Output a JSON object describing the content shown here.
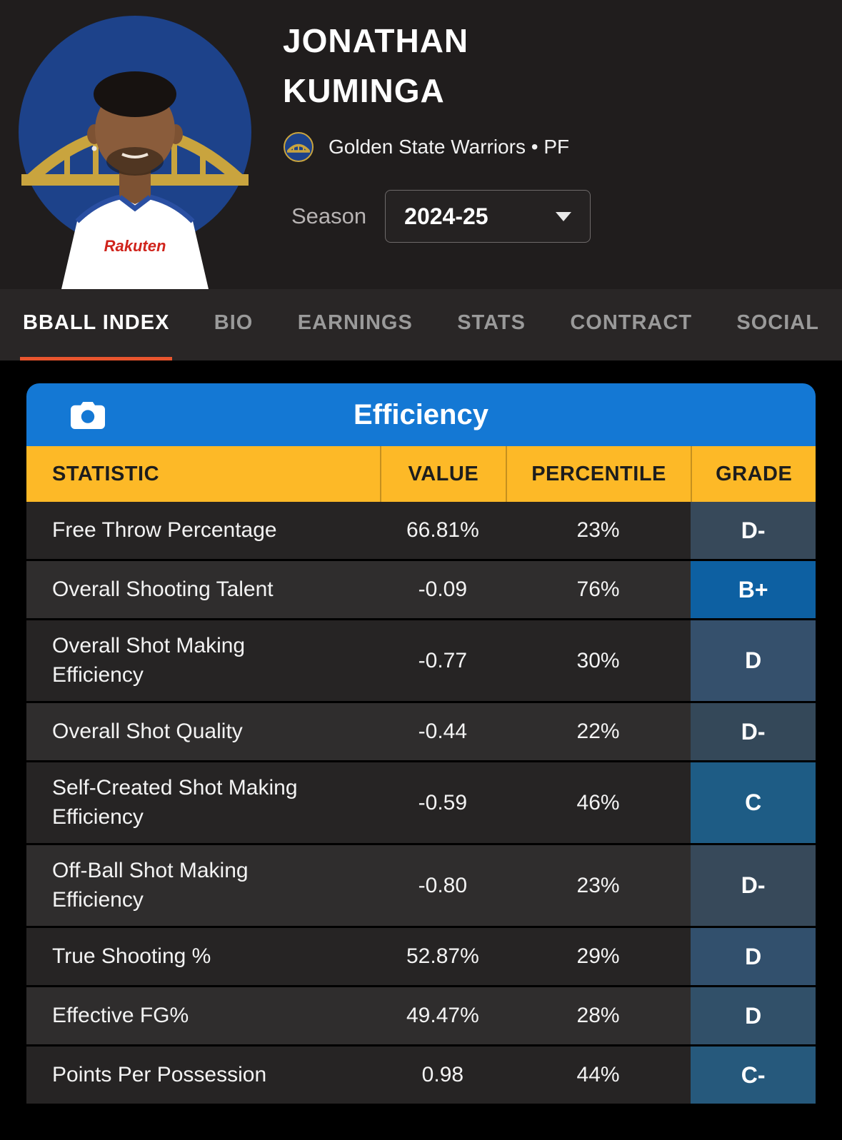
{
  "player": {
    "first_name": "JONATHAN",
    "last_name": "KUMINGA",
    "team": "Golden State Warriors • PF",
    "season_label": "Season",
    "season_value": "2024-25"
  },
  "tabs": [
    {
      "label": "BBALL INDEX",
      "active": true
    },
    {
      "label": "BIO",
      "active": false
    },
    {
      "label": "EARNINGS",
      "active": false
    },
    {
      "label": "STATS",
      "active": false
    },
    {
      "label": "CONTRACT",
      "active": false
    },
    {
      "label": "SOCIAL",
      "active": false
    }
  ],
  "card": {
    "title": "Efficiency",
    "columns": [
      "STATISTIC",
      "VALUE",
      "PERCENTILE",
      "GRADE"
    ],
    "rows": [
      {
        "stat": "Free Throw Percentage",
        "value": "66.81%",
        "percentile": "23%",
        "grade": "D-",
        "grade_color": "#37495a"
      },
      {
        "stat": "Overall Shooting Talent",
        "value": "-0.09",
        "percentile": "76%",
        "grade": "B+",
        "grade_color": "#0d60a2"
      },
      {
        "stat": "Overall Shot Making Efficiency",
        "value": "-0.77",
        "percentile": "30%",
        "grade": "D",
        "grade_color": "#35506c"
      },
      {
        "stat": "Overall Shot Quality",
        "value": "-0.44",
        "percentile": "22%",
        "grade": "D-",
        "grade_color": "#344859"
      },
      {
        "stat": "Self-Created Shot Making Efficiency",
        "value": "-0.59",
        "percentile": "46%",
        "grade": "C",
        "grade_color": "#1e5c85"
      },
      {
        "stat": "Off-Ball Shot Making Efficiency",
        "value": "-0.80",
        "percentile": "23%",
        "grade": "D-",
        "grade_color": "#37495a"
      },
      {
        "stat": "True Shooting %",
        "value": "52.87%",
        "percentile": "29%",
        "grade": "D",
        "grade_color": "#32506d"
      },
      {
        "stat": "Effective FG%",
        "value": "49.47%",
        "percentile": "28%",
        "grade": "D",
        "grade_color": "#315069"
      },
      {
        "stat": "Points Per Possession",
        "value": "0.98",
        "percentile": "44%",
        "grade": "C-",
        "grade_color": "#26597c"
      }
    ]
  },
  "colors": {
    "accent_orange": "#e8552e",
    "header_blue": "#1478d4",
    "header_gold": "#fdb927",
    "hero_bg": "#201d1d",
    "tabbar_bg": "#292626",
    "row_odd": "#262424",
    "row_even": "#2f2d2d",
    "grade_text": "#ffffff",
    "team_blue": "#1d428a",
    "team_gold": "#c9a43e"
  }
}
